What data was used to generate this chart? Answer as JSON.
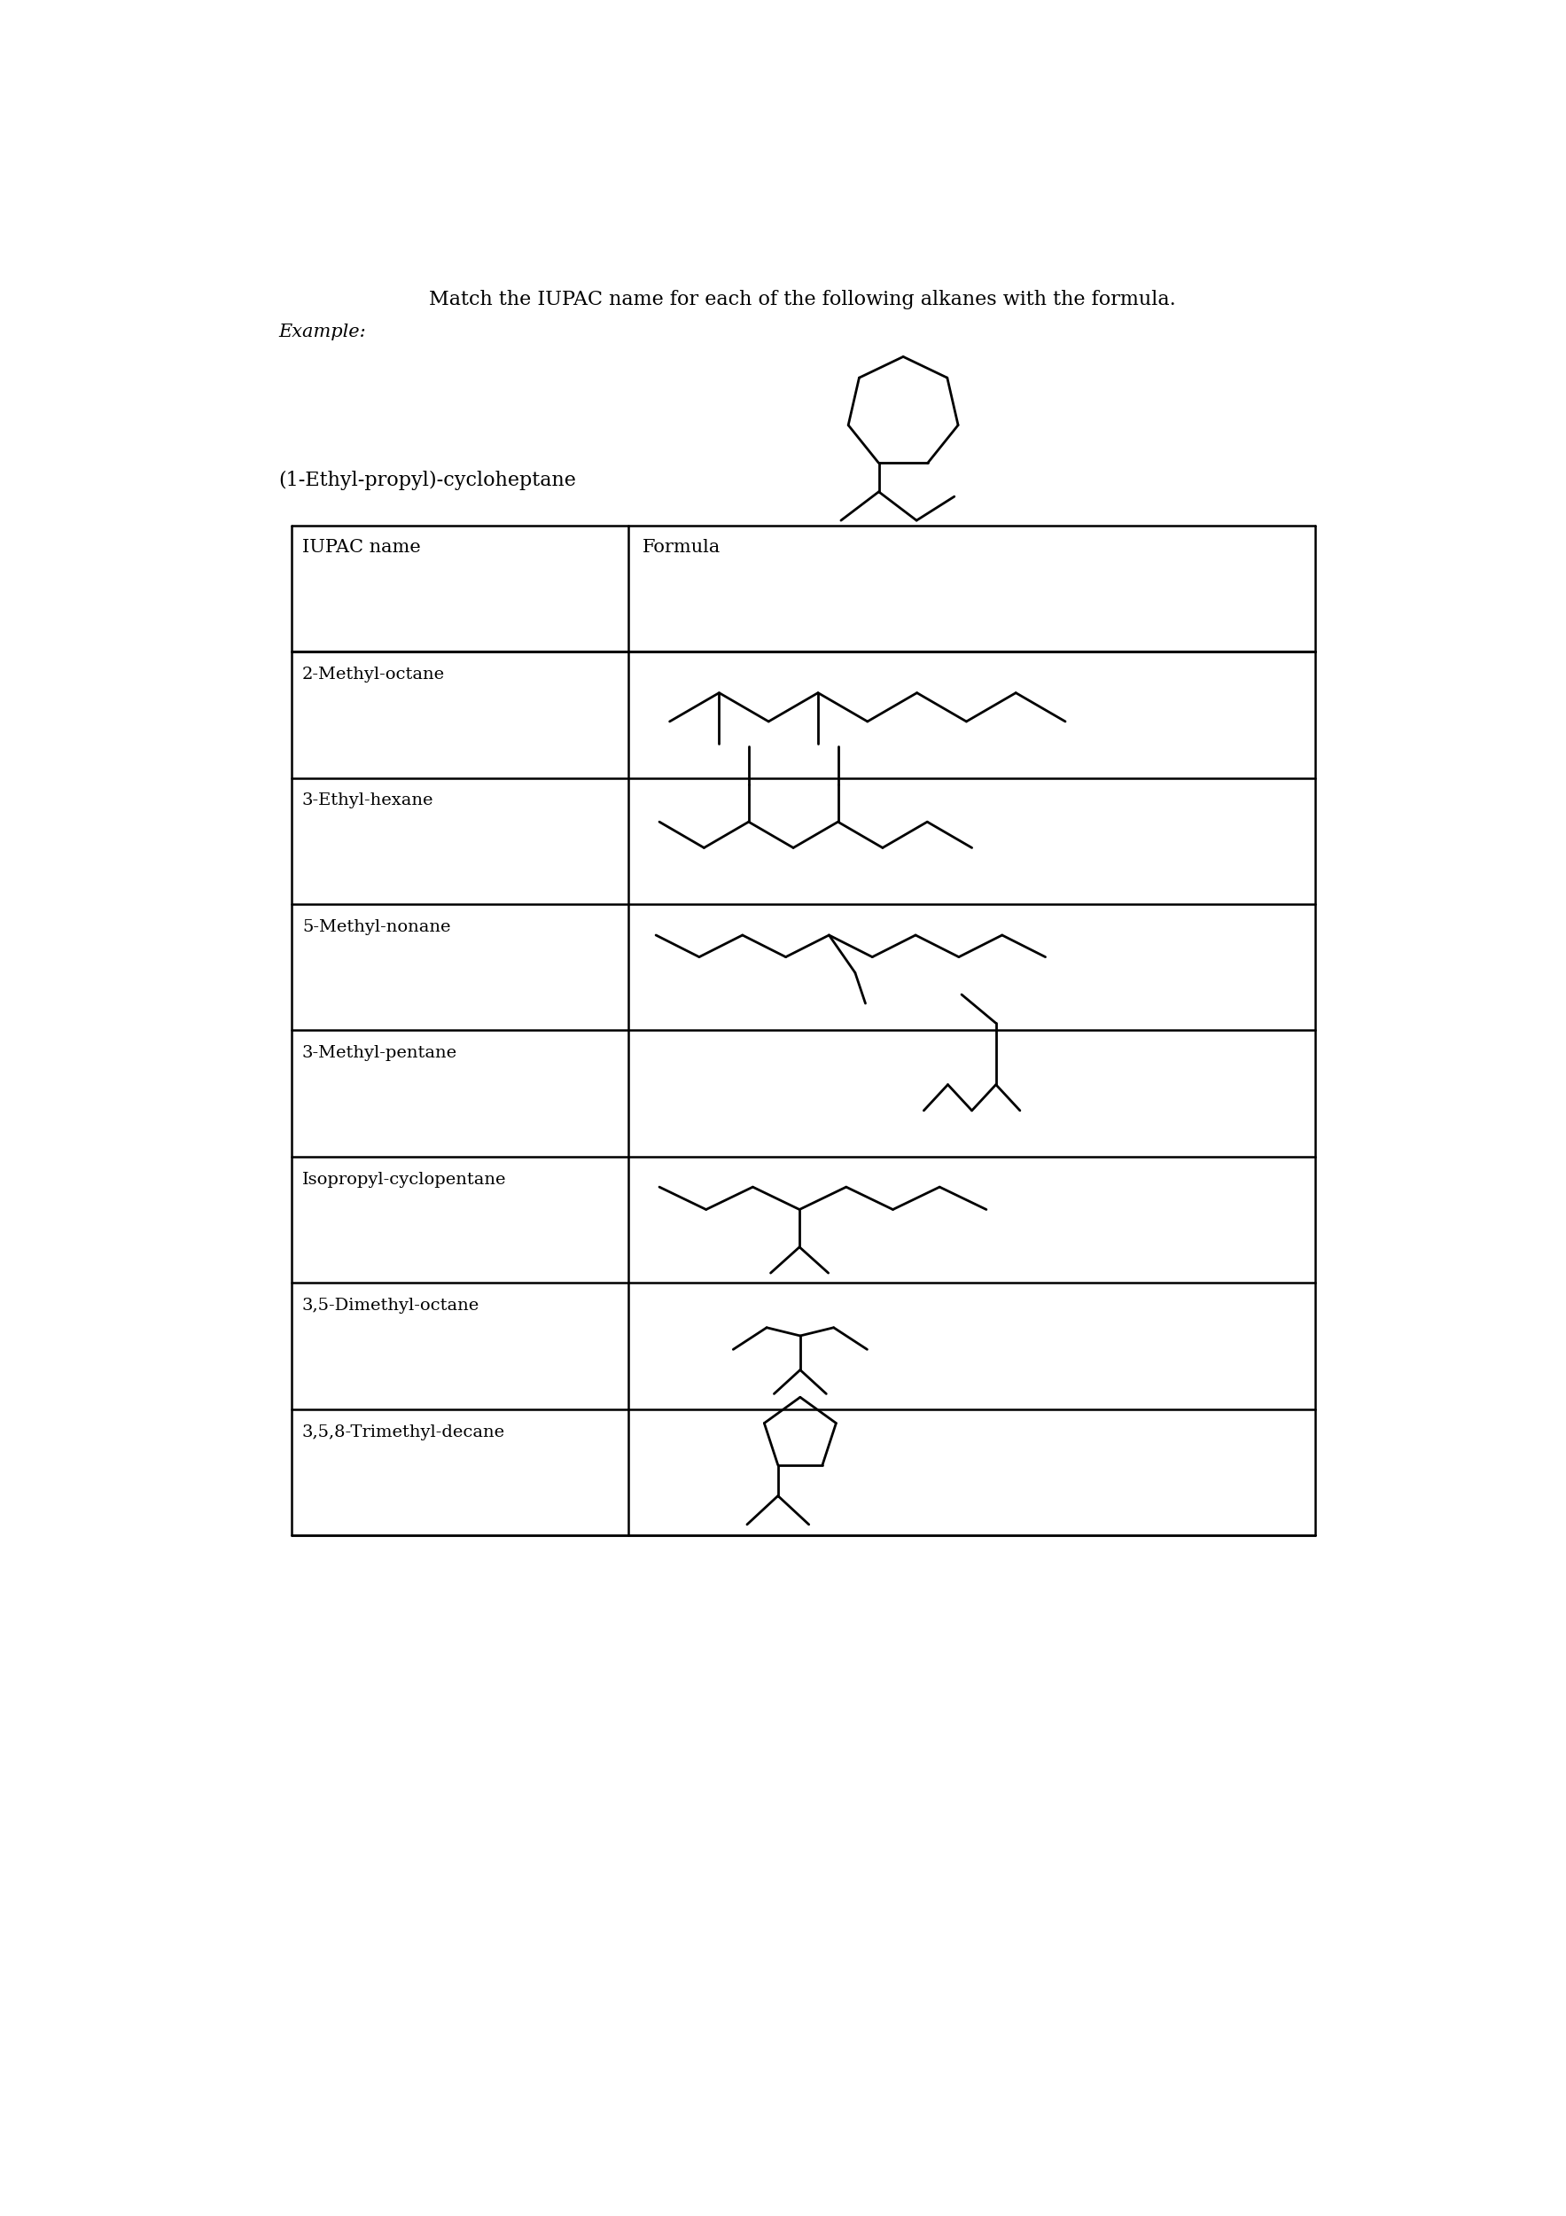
{
  "title_line1": "Match the IUPAC name for each of the following alkanes with the formula.",
  "title_line2": "Example:",
  "example_label": "(1-Ethyl-propyl)-cycloheptane",
  "table_headers": [
    "IUPAC name",
    "Formula"
  ],
  "rows": [
    "2-Methyl-octane",
    "3-Ethyl-hexane",
    "5-Methyl-nonane",
    "3-Methyl-pentane",
    "Isopropyl-cyclopentane",
    "3,5-Dimethyl-octane",
    "3,5,8-Trimethyl-decane"
  ],
  "bg_color": "#ffffff",
  "line_color": "#000000",
  "text_color": "#000000"
}
